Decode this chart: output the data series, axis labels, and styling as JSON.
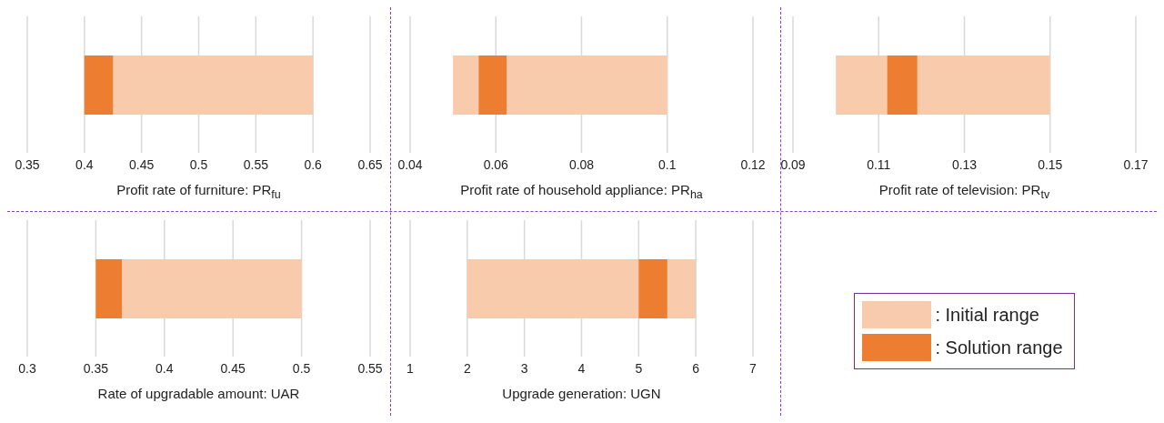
{
  "chart_data": [
    {
      "type": "bar",
      "orientation": "horizontal",
      "xlabel": "Profit rate of furniture: PR$_{fu}$",
      "categories": [
        null
      ],
      "xlim": [
        0.35,
        0.65
      ],
      "xticks": [
        0.35,
        0.4,
        0.45,
        0.5,
        0.55,
        0.6,
        0.65
      ],
      "grid": "x",
      "tick_labels": "x",
      "series": [
        {
          "color": "#f8cbad",
          "base": [
            0.4
          ],
          "values": [
            0.2
          ]
        },
        {
          "color": "#ed7d31",
          "base": [
            0.4
          ],
          "values": [
            0.025
          ]
        }
      ]
    },
    {
      "type": "bar",
      "orientation": "horizontal",
      "xlabel": "Profit rate of household appliance: PR$_{ha}$",
      "categories": [
        null
      ],
      "xlim": [
        0.04,
        0.12
      ],
      "xticks": [
        0.04,
        0.06,
        0.08,
        0.1,
        0.12
      ],
      "grid": "x",
      "tick_labels": "x",
      "series": [
        {
          "color": "#f8cbad",
          "base": [
            0.05
          ],
          "values": [
            0.05
          ]
        },
        {
          "color": "#ed7d31",
          "base": [
            0.056
          ],
          "values": [
            0.0065
          ]
        }
      ]
    },
    {
      "type": "bar",
      "orientation": "horizontal",
      "xlabel": "Profit rate of television: PR$_{tv}$",
      "categories": [
        null
      ],
      "xlim": [
        0.09,
        0.17
      ],
      "xticks": [
        0.09,
        0.11,
        0.13,
        0.15,
        0.17
      ],
      "grid": "x",
      "tick_labels": "x",
      "series": [
        {
          "color": "#f8cbad",
          "base": [
            0.1
          ],
          "values": [
            0.05
          ]
        },
        {
          "color": "#ed7d31",
          "base": [
            0.112
          ],
          "values": [
            0.007
          ]
        }
      ]
    },
    {
      "type": "bar",
      "orientation": "horizontal",
      "xlabel": "Rate of upgradable amount: UAR",
      "categories": [
        null
      ],
      "xlim": [
        0.3,
        0.55
      ],
      "xticks": [
        0.3,
        0.35,
        0.4,
        0.45,
        0.5,
        0.55
      ],
      "grid": "x",
      "tick_labels": "x",
      "series": [
        {
          "color": "#f8cbad",
          "base": [
            0.35
          ],
          "values": [
            0.15
          ]
        },
        {
          "color": "#ed7d31",
          "base": [
            0.35
          ],
          "values": [
            0.019
          ]
        }
      ]
    },
    {
      "type": "bar",
      "orientation": "horizontal",
      "xlabel": "Upgrade generation: UGN",
      "categories": [
        null
      ],
      "xlim": [
        1,
        7
      ],
      "xticks": [
        1,
        2,
        3,
        4,
        5,
        6,
        7
      ],
      "grid": "x",
      "tick_labels": "x",
      "legend": "right",
      "series": [
        {
          "name": ": Initial range",
          "color": "#f8cbad",
          "base": [
            2
          ],
          "values": [
            4
          ]
        },
        {
          "name": ": Solution range",
          "color": "#ed7d31",
          "base": [
            5
          ],
          "values": [
            0.5
          ]
        }
      ]
    }
  ]
}
